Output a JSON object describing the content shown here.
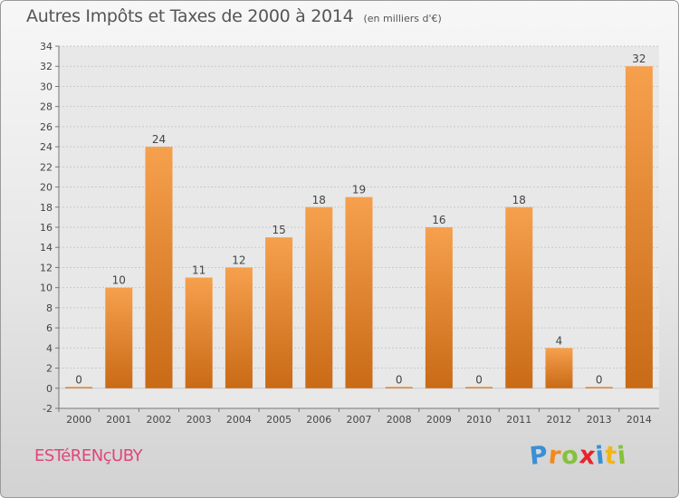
{
  "header": {
    "title": "Autres Impôts et Taxes de 2000 à 2014",
    "subtitle": "(en milliers d'€)"
  },
  "footer": {
    "commune": "ESTéRENçUBY",
    "brand": "Proxiti",
    "brand_letters": [
      {
        "ch": "P",
        "color": "#3a8fd6"
      },
      {
        "ch": "r",
        "color": "#f08a1c"
      },
      {
        "ch": "o",
        "color": "#86c13b"
      },
      {
        "ch": "x",
        "color": "#e8232b"
      },
      {
        "ch": "i",
        "color": "#3a8fd6"
      },
      {
        "ch": "t",
        "color": "#f2b419"
      },
      {
        "ch": "i",
        "color": "#86c13b"
      }
    ]
  },
  "chart_data": {
    "type": "bar",
    "title": "Autres Impôts et Taxes de 2000 à 2014",
    "subtitle": "(en milliers d'€)",
    "categories": [
      "2000",
      "2001",
      "2002",
      "2003",
      "2004",
      "2005",
      "2006",
      "2007",
      "2008",
      "2009",
      "2010",
      "2011",
      "2012",
      "2013",
      "2014"
    ],
    "values": [
      0,
      10,
      24,
      11,
      12,
      15,
      18,
      19,
      0,
      16,
      0,
      18,
      4,
      0,
      32
    ],
    "ylim": [
      -2,
      34
    ],
    "yticks": [
      -2,
      0,
      2,
      4,
      6,
      8,
      10,
      12,
      14,
      16,
      18,
      20,
      22,
      24,
      26,
      28,
      30,
      32,
      34
    ],
    "grid": true,
    "bar_color_top": "#f6a04d",
    "bar_color_bottom": "#c96a16"
  }
}
